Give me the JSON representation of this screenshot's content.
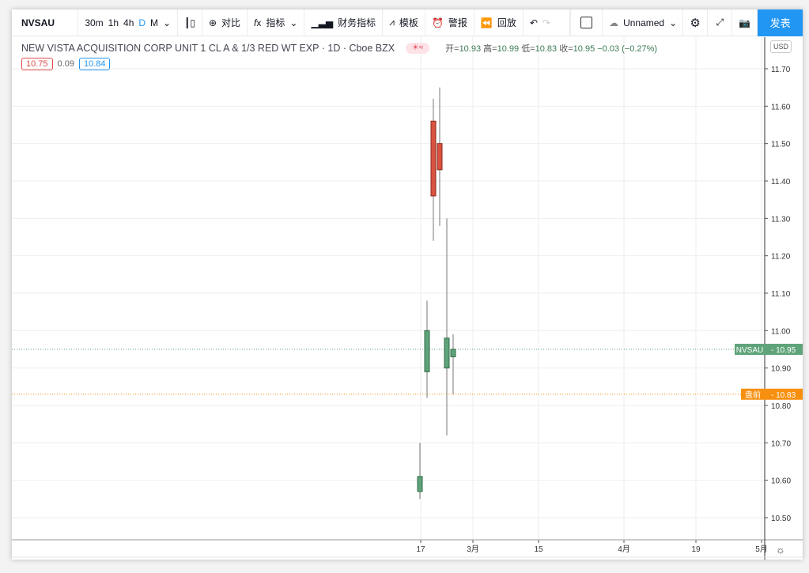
{
  "toolbar": {
    "symbol": "NVSAU",
    "intervals": [
      "30m",
      "1h",
      "4h",
      "D",
      "M"
    ],
    "active_interval": "D",
    "compare": "对比",
    "indicators": "指标",
    "financials": "财务指标",
    "templates": "模板",
    "alert": "警报",
    "replay": "回放",
    "layout_name": "Unnamed",
    "publish": "发表"
  },
  "legend": {
    "title": "NEW VISTA ACQUISITION CORP UNIT 1 CL A & 1/3 RED WT EXP · 1D · Cboe BZX",
    "open_label": "开=",
    "open": "10.93",
    "high_label": "高=",
    "high": "10.99",
    "low_label": "低=",
    "low": "10.83",
    "close_label": "收=",
    "close": "10.95",
    "change": "−0.03 (−0.27%)"
  },
  "quote": {
    "bid": "10.75",
    "spread": "0.09",
    "ask": "10.84"
  },
  "currency": "USD",
  "colors": {
    "up": "#5fa37a",
    "down": "#d9523f",
    "accent": "#2196f3",
    "premarket": "#f7900f"
  },
  "chart_data": {
    "type": "candlestick",
    "ylim": [
      10.45,
      11.75
    ],
    "yticks": [
      "11.70",
      "11.60",
      "11.50",
      "11.40",
      "11.30",
      "11.20",
      "11.10",
      "11.00",
      "10.90",
      "10.80",
      "10.70",
      "10.60",
      "10.50"
    ],
    "xticks": [
      "17",
      "3月",
      "15",
      "4月",
      "19",
      "5月"
    ],
    "candles": [
      {
        "date": "Feb 17",
        "o": 10.57,
        "h": 10.7,
        "l": 10.55,
        "c": 10.61
      },
      {
        "date": "Feb 18",
        "o": 10.89,
        "h": 11.08,
        "l": 10.82,
        "c": 11.0
      },
      {
        "date": "Feb 19",
        "o": 11.56,
        "h": 11.62,
        "l": 11.24,
        "c": 11.36
      },
      {
        "date": "Feb 22",
        "o": 11.5,
        "h": 11.65,
        "l": 11.28,
        "c": 11.43
      },
      {
        "date": "Feb 23",
        "o": 10.9,
        "h": 11.3,
        "l": 10.72,
        "c": 10.98
      },
      {
        "date": "Feb 24",
        "o": 10.93,
        "h": 10.99,
        "l": 10.83,
        "c": 10.95
      }
    ],
    "last_price": {
      "label": "NVSAU",
      "value": "10.95"
    },
    "premarket": {
      "label": "盘前",
      "value": "10.83"
    }
  }
}
